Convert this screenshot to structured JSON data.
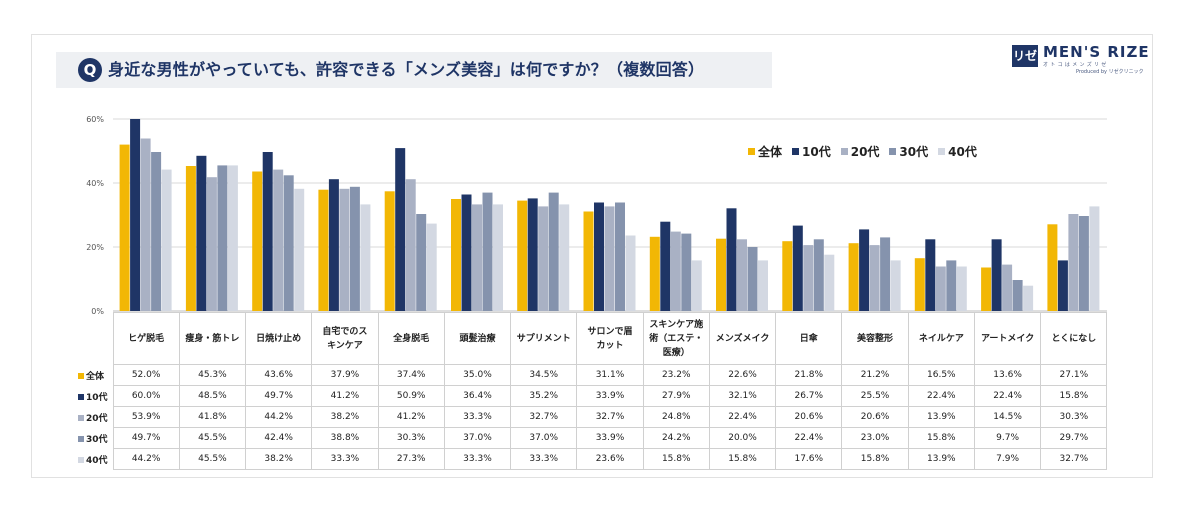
{
  "title": {
    "icon_letter": "Q",
    "text": "身近な男性がやっていても、許容できる「メンズ美容」は何ですか？（複数回答）"
  },
  "logo": {
    "mark": "リゼ",
    "name": "MEN'S RIZE",
    "sub": "オトコはメンズリゼ",
    "produced": "Produced by リゼクリニック"
  },
  "colors": {
    "全体": "#f2b705",
    "10代": "#1f3566",
    "20代": "#a9b1c4",
    "30代": "#8593ad",
    "40代": "#d3d8e2",
    "grid": "#d9d9d9",
    "axis_text": "#555555"
  },
  "chart_data": {
    "type": "bar",
    "title": "身近な男性がやっていても、許容できる「メンズ美容」は何ですか？（複数回答）",
    "categories": [
      "ヒゲ脱毛",
      "痩身・筋トレ",
      "日焼け止め",
      "自宅でのスキンケア",
      "全身脱毛",
      "頭髪治療",
      "サプリメント",
      "サロンで眉カット",
      "スキンケア施術（エステ・医療）",
      "メンズメイク",
      "日傘",
      "美容整形",
      "ネイルケア",
      "アートメイク",
      "とくになし"
    ],
    "series": [
      {
        "name": "全体",
        "values": [
          52.0,
          45.3,
          43.6,
          37.9,
          37.4,
          35.0,
          34.5,
          31.1,
          23.2,
          22.6,
          21.8,
          21.2,
          16.5,
          13.6,
          27.1
        ]
      },
      {
        "name": "10代",
        "values": [
          60.0,
          48.5,
          49.7,
          41.2,
          50.9,
          36.4,
          35.2,
          33.9,
          27.9,
          32.1,
          26.7,
          25.5,
          22.4,
          22.4,
          15.8
        ]
      },
      {
        "name": "20代",
        "values": [
          53.9,
          41.8,
          44.2,
          38.2,
          41.2,
          33.3,
          32.7,
          32.7,
          24.8,
          22.4,
          20.6,
          20.6,
          13.9,
          14.5,
          30.3
        ]
      },
      {
        "name": "30代",
        "values": [
          49.7,
          45.5,
          42.4,
          38.8,
          30.3,
          37.0,
          37.0,
          33.9,
          24.2,
          20.0,
          22.4,
          23.0,
          15.8,
          9.7,
          29.7
        ]
      },
      {
        "name": "40代",
        "values": [
          44.2,
          45.5,
          38.2,
          33.3,
          27.3,
          33.3,
          33.3,
          23.6,
          15.8,
          15.8,
          17.6,
          15.8,
          13.9,
          7.9,
          32.7
        ]
      }
    ],
    "category_labels": [
      "ヒゲ脱毛",
      "痩身・筋トレ",
      "日焼け止め",
      "自宅でのス\nキンケア",
      "全身脱毛",
      "頭髪治療",
      "サプリメント",
      "サロンで眉\nカット",
      "スキンケア施\n術（エステ・\n医療）",
      "メンズメイク",
      "日傘",
      "美容整形",
      "ネイルケア",
      "アートメイク",
      "とくになし"
    ],
    "yticks": [
      0,
      20,
      40,
      60
    ],
    "ytick_labels": [
      "0%",
      "20%",
      "40%",
      "60%"
    ],
    "ylim": [
      0,
      60
    ],
    "grid": true,
    "legend_position": "top-right",
    "value_format": "%"
  }
}
